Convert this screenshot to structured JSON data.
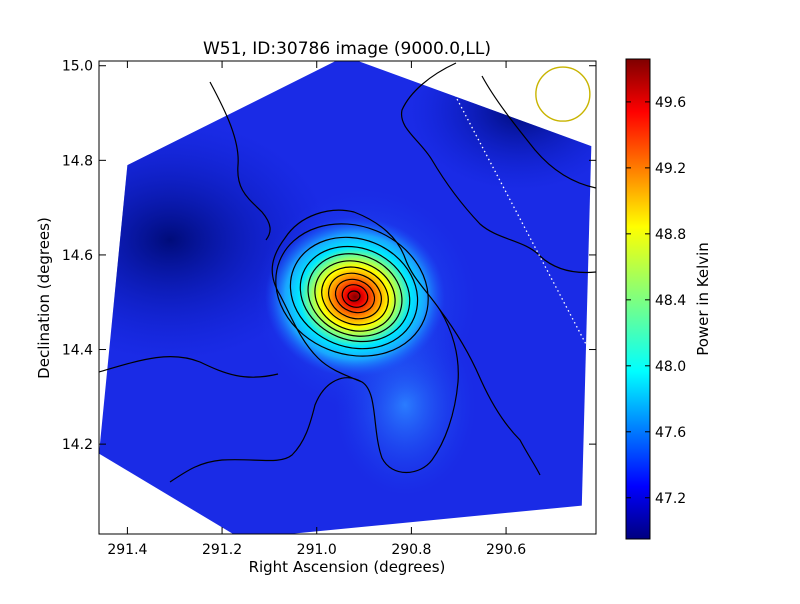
{
  "chart_data": {
    "type": "heatmap",
    "title": "W51, ID:30786 image (9000.0,LL)",
    "xlabel": "Right Ascension (degrees)",
    "ylabel": "Declination (degrees)",
    "xlim": [
      291.46,
      290.41
    ],
    "ylim": [
      14.01,
      15.01
    ],
    "x_ticks": [
      291.4,
      291.2,
      291.0,
      290.8,
      290.6
    ],
    "x_tick_labels": [
      "291.4",
      "291.2",
      "291.0",
      "290.8",
      "290.6"
    ],
    "y_ticks": [
      14.2,
      14.4,
      14.6,
      14.8,
      15.0
    ],
    "y_tick_labels": [
      "14.2",
      "14.4",
      "14.6",
      "14.8",
      "15.0"
    ],
    "colorbar": {
      "label": "Power in Kelvin",
      "range": [
        46.95,
        49.86
      ],
      "ticks": [
        47.2,
        47.6,
        48.0,
        48.4,
        48.8,
        49.2,
        49.6
      ],
      "tick_labels": [
        "47.2",
        "47.6",
        "48.0",
        "48.4",
        "48.8",
        "49.2",
        "49.6"
      ],
      "colormap": "jet"
    },
    "peak": {
      "x": 290.92,
      "y": 14.51,
      "value": 49.86
    },
    "map_footprint": "rotated square, corners at approx. (291.40, 14.79), (290.94, 15.02), (290.42, 14.83), (290.44, 14.07), (291.16, 14.00), (291.46, 14.18)",
    "beam_circle": {
      "center_x": 290.48,
      "center_y": 14.94,
      "color": "#c8b400"
    },
    "dotted_line": {
      "from": [
        290.73,
        14.98
      ],
      "to": [
        290.42,
        14.39
      ],
      "color": "#ffffff"
    },
    "contour_color": "#000000"
  },
  "colors": {
    "background": "#ffffff",
    "map_base": "#1a2be6",
    "map_dark": "#000c8a",
    "peak": "#7a0000",
    "beam": "#c8b400"
  }
}
